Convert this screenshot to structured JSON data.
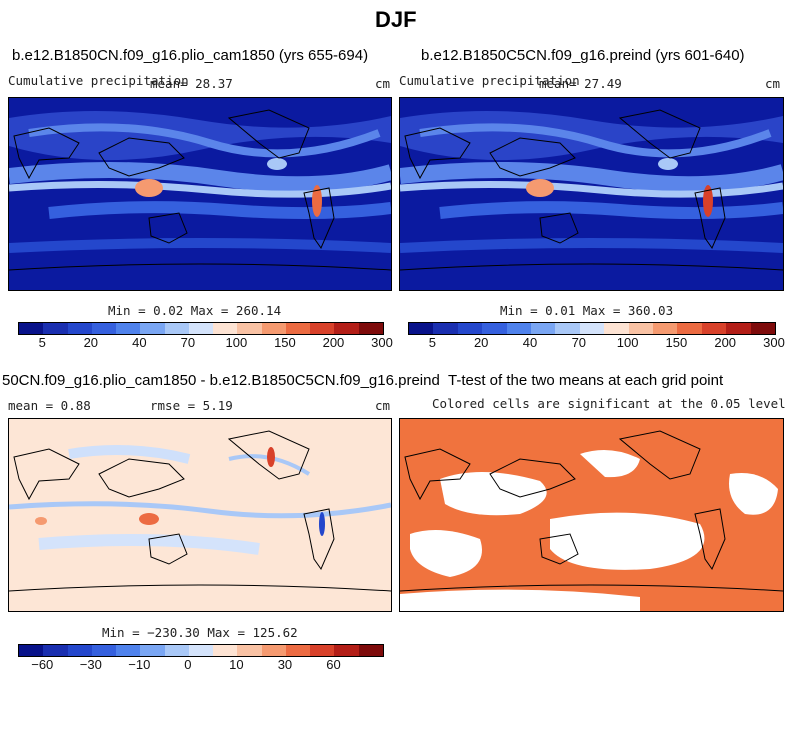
{
  "title": "DJF",
  "panels": {
    "p1": {
      "title": "b.e12.B1850CN.f09_g16.plio_cam1850 (yrs 655-694)",
      "var": "Cumulative precipitation",
      "mean": "mean=  28.37",
      "units": "cm",
      "minmax": "Min =   0.02 Max = 260.14"
    },
    "p2": {
      "title": "b.e12.B1850C5CN.f09_g16.preind (yrs 601-640)",
      "var": "Cumulative precipitation",
      "mean": "mean=  27.49",
      "units": "cm",
      "minmax": "Min =   0.01 Max = 360.03"
    },
    "p3": {
      "title": "50CN.f09_g16.plio_cam1850 - b.e12.B1850C5CN.f09_g16.preind",
      "mean": "mean =   0.88",
      "rmse": "rmse =   5.19",
      "units": "cm",
      "minmax": "Min = −230.30 Max = 125.62"
    },
    "p4": {
      "title": "T-test of the two means at each grid point",
      "subtitle": "Colored cells are significant at the 0.05 level"
    }
  },
  "colorbar_precip": {
    "colors": [
      "#08128a",
      "#1a2fb0",
      "#2447cc",
      "#3560de",
      "#4f82ec",
      "#7aa6f3",
      "#a9c8f7",
      "#d4e3fb",
      "#fde3d3",
      "#f9c2a4",
      "#f59a70",
      "#ec6b42",
      "#d8412a",
      "#b31e17",
      "#7e0b0b"
    ],
    "ticks": [
      "5",
      "20",
      "40",
      "70",
      "100",
      "150",
      "200",
      "300"
    ]
  },
  "colorbar_diff": {
    "colors": [
      "#08128a",
      "#1a2fb0",
      "#2447cc",
      "#3560de",
      "#4f82ec",
      "#7aa6f3",
      "#a9c8f7",
      "#d4e3fb",
      "#fde3d3",
      "#f9c2a4",
      "#f59a70",
      "#ec6b42",
      "#d8412a",
      "#b31e17",
      "#7e0b0b"
    ],
    "ticks": [
      "−60",
      "−30",
      "−10",
      "0",
      "10",
      "30",
      "60"
    ]
  },
  "colors": {
    "ocean_dark": "#0b1aa0",
    "ocean_mid": "#2a44c8",
    "band_light": "#8fb2f1",
    "diff_bg": "#fde6d6",
    "sig": "#f0733e"
  }
}
